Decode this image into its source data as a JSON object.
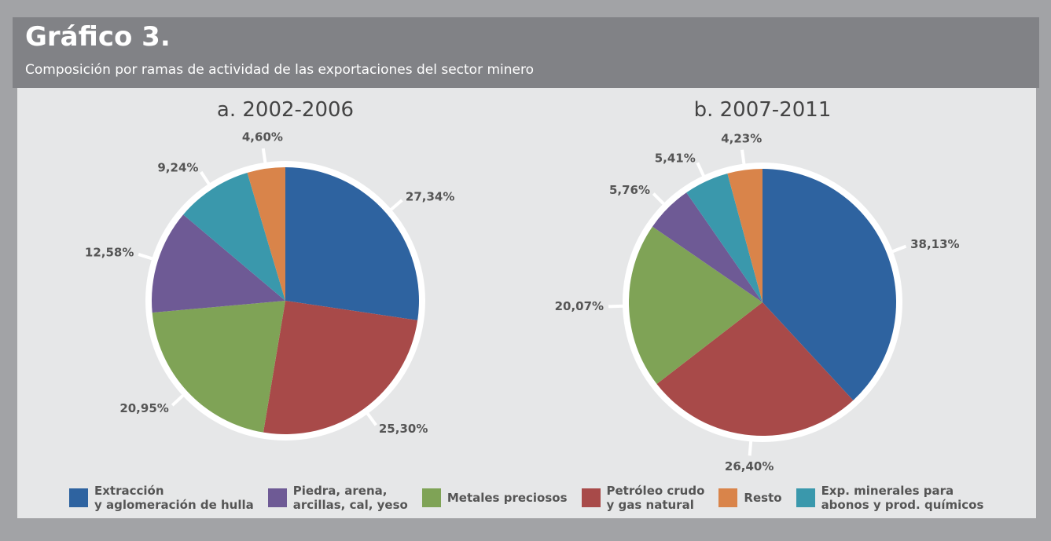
{
  "title": "Gráfico 3.",
  "subtitle": "Composición por ramas de actividad de las exportaciones del sector minero",
  "legend": [
    {
      "name": "Extracción\ny aglomeración de hulla",
      "color": "#2e63a0"
    },
    {
      "name": "Piedra, arena,\narcillas, cal, yeso",
      "color": "#6e5a95"
    },
    {
      "name": "Metales preciosos",
      "color": "#7fa356"
    },
    {
      "name": "Petróleo crudo\ny gas natural",
      "color": "#a84a49"
    },
    {
      "name": "Resto",
      "color": "#d9844a"
    },
    {
      "name": "Exp. minerales para\nabonos y prod. químicos",
      "color": "#3a98ac"
    }
  ],
  "chart_data": [
    {
      "type": "pie",
      "title": "a. 2002-2006",
      "values": [
        27.34,
        25.3,
        20.95,
        12.58,
        9.24,
        4.6
      ],
      "value_labels": [
        "27,34%",
        "25,30%",
        "20,95%",
        "12,58%",
        "9,24%",
        "4,60%"
      ],
      "colors": [
        "#2e63a0",
        "#a84a49",
        "#7fa356",
        "#6e5a95",
        "#3a98ac",
        "#d9844a"
      ]
    },
    {
      "type": "pie",
      "title": "b. 2007-2011",
      "values": [
        38.13,
        26.4,
        20.07,
        5.76,
        5.41,
        4.23
      ],
      "value_labels": [
        "38,13%",
        "26,40%",
        "20,07%",
        "5,76%",
        "5,41%",
        "4,23%"
      ],
      "colors": [
        "#2e63a0",
        "#a84a49",
        "#7fa356",
        "#6e5a95",
        "#3a98ac",
        "#d9844a"
      ]
    }
  ]
}
